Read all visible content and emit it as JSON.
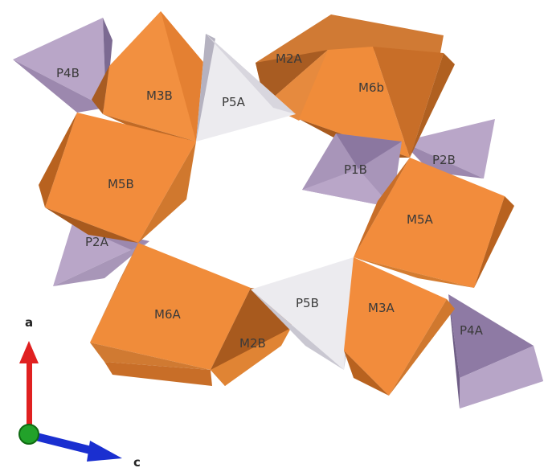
{
  "colors": {
    "octa_light": "#f28c3c",
    "octa_mid": "#e07a2a",
    "octa_dark": "#a85a1e",
    "octa_shadow": "#c86a24",
    "tetra_light": "#b8a4c6",
    "tetra_mid": "#9a86ac",
    "tetra_dark": "#7a6890",
    "tetra_white_light": "#ecebef",
    "tetra_white_dark": "#b4b2bc",
    "axis_a": "#e02020",
    "axis_c": "#1a2fd0",
    "axis_b": "#22a22a"
  },
  "polyhedra": {
    "octahedra": [
      "M2A",
      "M6b",
      "M3B",
      "M5B",
      "M5A",
      "M6A",
      "M2B",
      "M3A"
    ],
    "tetrahedra": [
      "P4B",
      "P5A",
      "P1B",
      "P2B",
      "P2A",
      "P5B",
      "P4A"
    ]
  },
  "labels": {
    "M2A": "M2A",
    "M6b": "M6b",
    "M3B": "M3B",
    "M5B": "M5B",
    "M5A": "M5A",
    "M6A": "M6A",
    "M2B": "M2B",
    "M3A": "M3A",
    "P4B": "P4B",
    "P5A": "P5A",
    "P1B": "P1B",
    "P2B": "P2B",
    "P2A": "P2A",
    "P5B": "P5B",
    "P4A": "P4A"
  },
  "axes": {
    "a": "a",
    "c": "c"
  }
}
